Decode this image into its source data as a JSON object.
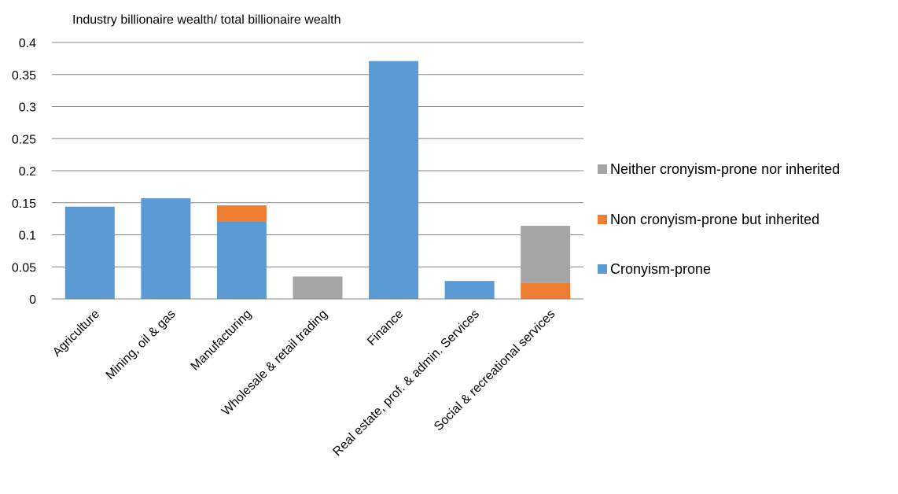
{
  "chart_data": {
    "type": "bar",
    "stacked": true,
    "title": "Industry billionaire wealth/ total billionaire wealth",
    "xlabel": "",
    "ylabel": "",
    "ylim": [
      0,
      0.4
    ],
    "yticks": [
      "0",
      "0.05",
      "0.1",
      "0.15",
      "0.2",
      "0.25",
      "0.3",
      "0.35",
      "0.4"
    ],
    "grid": true,
    "legend_position": "right",
    "categories": [
      "Agriculture",
      "Mining, oil & gas",
      "Manufacturing",
      "Wholesale & retail trading",
      "Finance",
      "Real estate, prof. & admin. Services",
      "Social & recreational services"
    ],
    "series": [
      {
        "name": "Cronyism-prone",
        "color": "#5b9bd5",
        "values": [
          0.144,
          0.157,
          0.121,
          0.0,
          0.371,
          0.028,
          0.0
        ]
      },
      {
        "name": "Non cronyism-prone but inherited",
        "color": "#ed7d31",
        "values": [
          0.0,
          0.0,
          0.025,
          0.0,
          0.0,
          0.0,
          0.025
        ]
      },
      {
        "name": "Neither cronyism-prone nor inherited",
        "color": "#a5a5a5",
        "values": [
          0.0,
          0.0,
          0.0,
          0.035,
          0.0,
          0.0,
          0.089
        ]
      }
    ],
    "legend_order": [
      2,
      1,
      0
    ]
  }
}
